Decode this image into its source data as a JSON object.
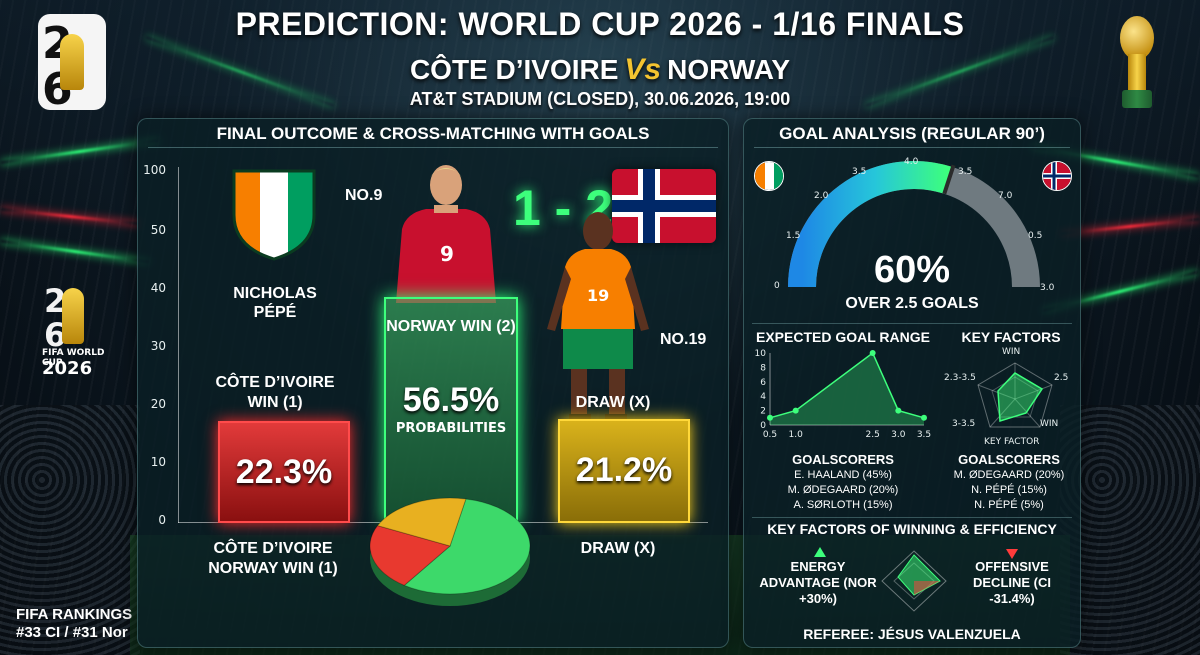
{
  "header": {
    "title": "PREDICTION: WORLD CUP 2026 - 1/16 FINALS",
    "team_home": "CÔTE D’IVOIRE",
    "vs": "Vs",
    "team_away": "NORWAY",
    "venue": "AT&T STADIUM (CLOSED), 30.06.2026, 19:00"
  },
  "branding": {
    "logo_line1": "FIFA WORLD CUP",
    "logo_line2": "2026"
  },
  "rankings": {
    "line1": "FIFA RANKINGS",
    "line2": "#33 CI / #31 Nor"
  },
  "left_panel": {
    "title": "FINAL OUTCOME & CROSS-MATCHING WITH GOALS",
    "score": "1 - 2",
    "player_left_name": "NICHOLAS PÉPÉ",
    "no9": "NO.9",
    "no9_shirt": "9",
    "no19": "NO.19",
    "no19_shirt": "19",
    "bars": [
      {
        "label": "CÔTE D’IVOIRE WIN (1)",
        "value_text": "22.3%",
        "color": "#e23a3a"
      },
      {
        "label": "NORWAY WIN (2)",
        "value_text": "56.5%",
        "sub": "PROBABILITIES",
        "color": "#3dff7c"
      },
      {
        "label": "DRAW (X)",
        "value_text": "21.2%",
        "color": "#d9b21b"
      }
    ],
    "bottom_left": "CÔTE D’IVOIRE NORWAY WIN (1)",
    "bottom_right": "DRAW (X)"
  },
  "right_panel": {
    "title": "GOAL ANALYSIS (REGULAR 90’)",
    "gauge_value": "60%",
    "gauge_label": "OVER 2.5 GOALS",
    "gauge_fill": 0.6,
    "gauge_ticks": [
      "0",
      "1.5",
      "2.0",
      "3.5",
      "4.0",
      "3.5",
      "7.0",
      "0.5",
      "3.0"
    ],
    "xg_title": "EXPECTED GOAL RANGE",
    "kf_title": "KEY FACTORS",
    "kf_labels": [
      "WIN",
      "2.5",
      "WIN",
      "3-3.5",
      "2.3-3.5",
      "KEY FACTOR"
    ],
    "goalscorers_left": {
      "title": "GOALSCORERS",
      "items": [
        "E. HAALAND (45%)",
        "M. ØDEGAARD (20%)",
        "A. SØRLOTH (15%)"
      ]
    },
    "goalscorers_right": {
      "title": "GOALSCORERS",
      "items": [
        "M. ØDEGAARD (20%)",
        "N. PÉPÉ (15%)",
        "N. PÉPÉ (5%)"
      ]
    },
    "efficiency_title": "KEY FACTORS OF WINNING & EFFICIENCY",
    "energy": "ENERGY ADVANTAGE (NOR +30%)",
    "offensive": "OFFENSIVE DECLINE (CI -31.4%)",
    "referee": "REFEREE: JÉSUS VALENZUELA"
  },
  "chart_data": [
    {
      "type": "bar",
      "title": "FINAL OUTCOME & CROSS-MATCHING WITH GOALS",
      "categories": [
        "CÔTE D’IVOIRE WIN (1)",
        "NORWAY WIN (2)",
        "DRAW (X)"
      ],
      "values": [
        22.3,
        56.5,
        21.2
      ],
      "y_ticks": [
        "100",
        "50",
        "40",
        "30",
        "20",
        "10",
        "0"
      ],
      "colors": [
        "#e23a3a",
        "#3dff7c",
        "#d9b21b"
      ]
    },
    {
      "type": "pie",
      "categories": [
        "NORWAY WIN (2)",
        "CÔTE D’IVOIRE WIN (1)",
        "DRAW (X)"
      ],
      "values": [
        56.5,
        22.3,
        21.2
      ],
      "colors": [
        "#3dd96a",
        "#e8392f",
        "#e8b020"
      ]
    },
    {
      "type": "line",
      "title": "EXPECTED GOAL RANGE",
      "x": [
        0.5,
        1.0,
        2.5,
        3.0,
        3.5
      ],
      "y": [
        1,
        2,
        10,
        2,
        1
      ],
      "x_ticks": [
        "0.5",
        "1.0",
        "2.5",
        "3.0",
        "3.5"
      ],
      "y_ticks": [
        "10",
        "8",
        "6",
        "4",
        "2",
        "0"
      ],
      "ylim": [
        0,
        10
      ]
    }
  ]
}
